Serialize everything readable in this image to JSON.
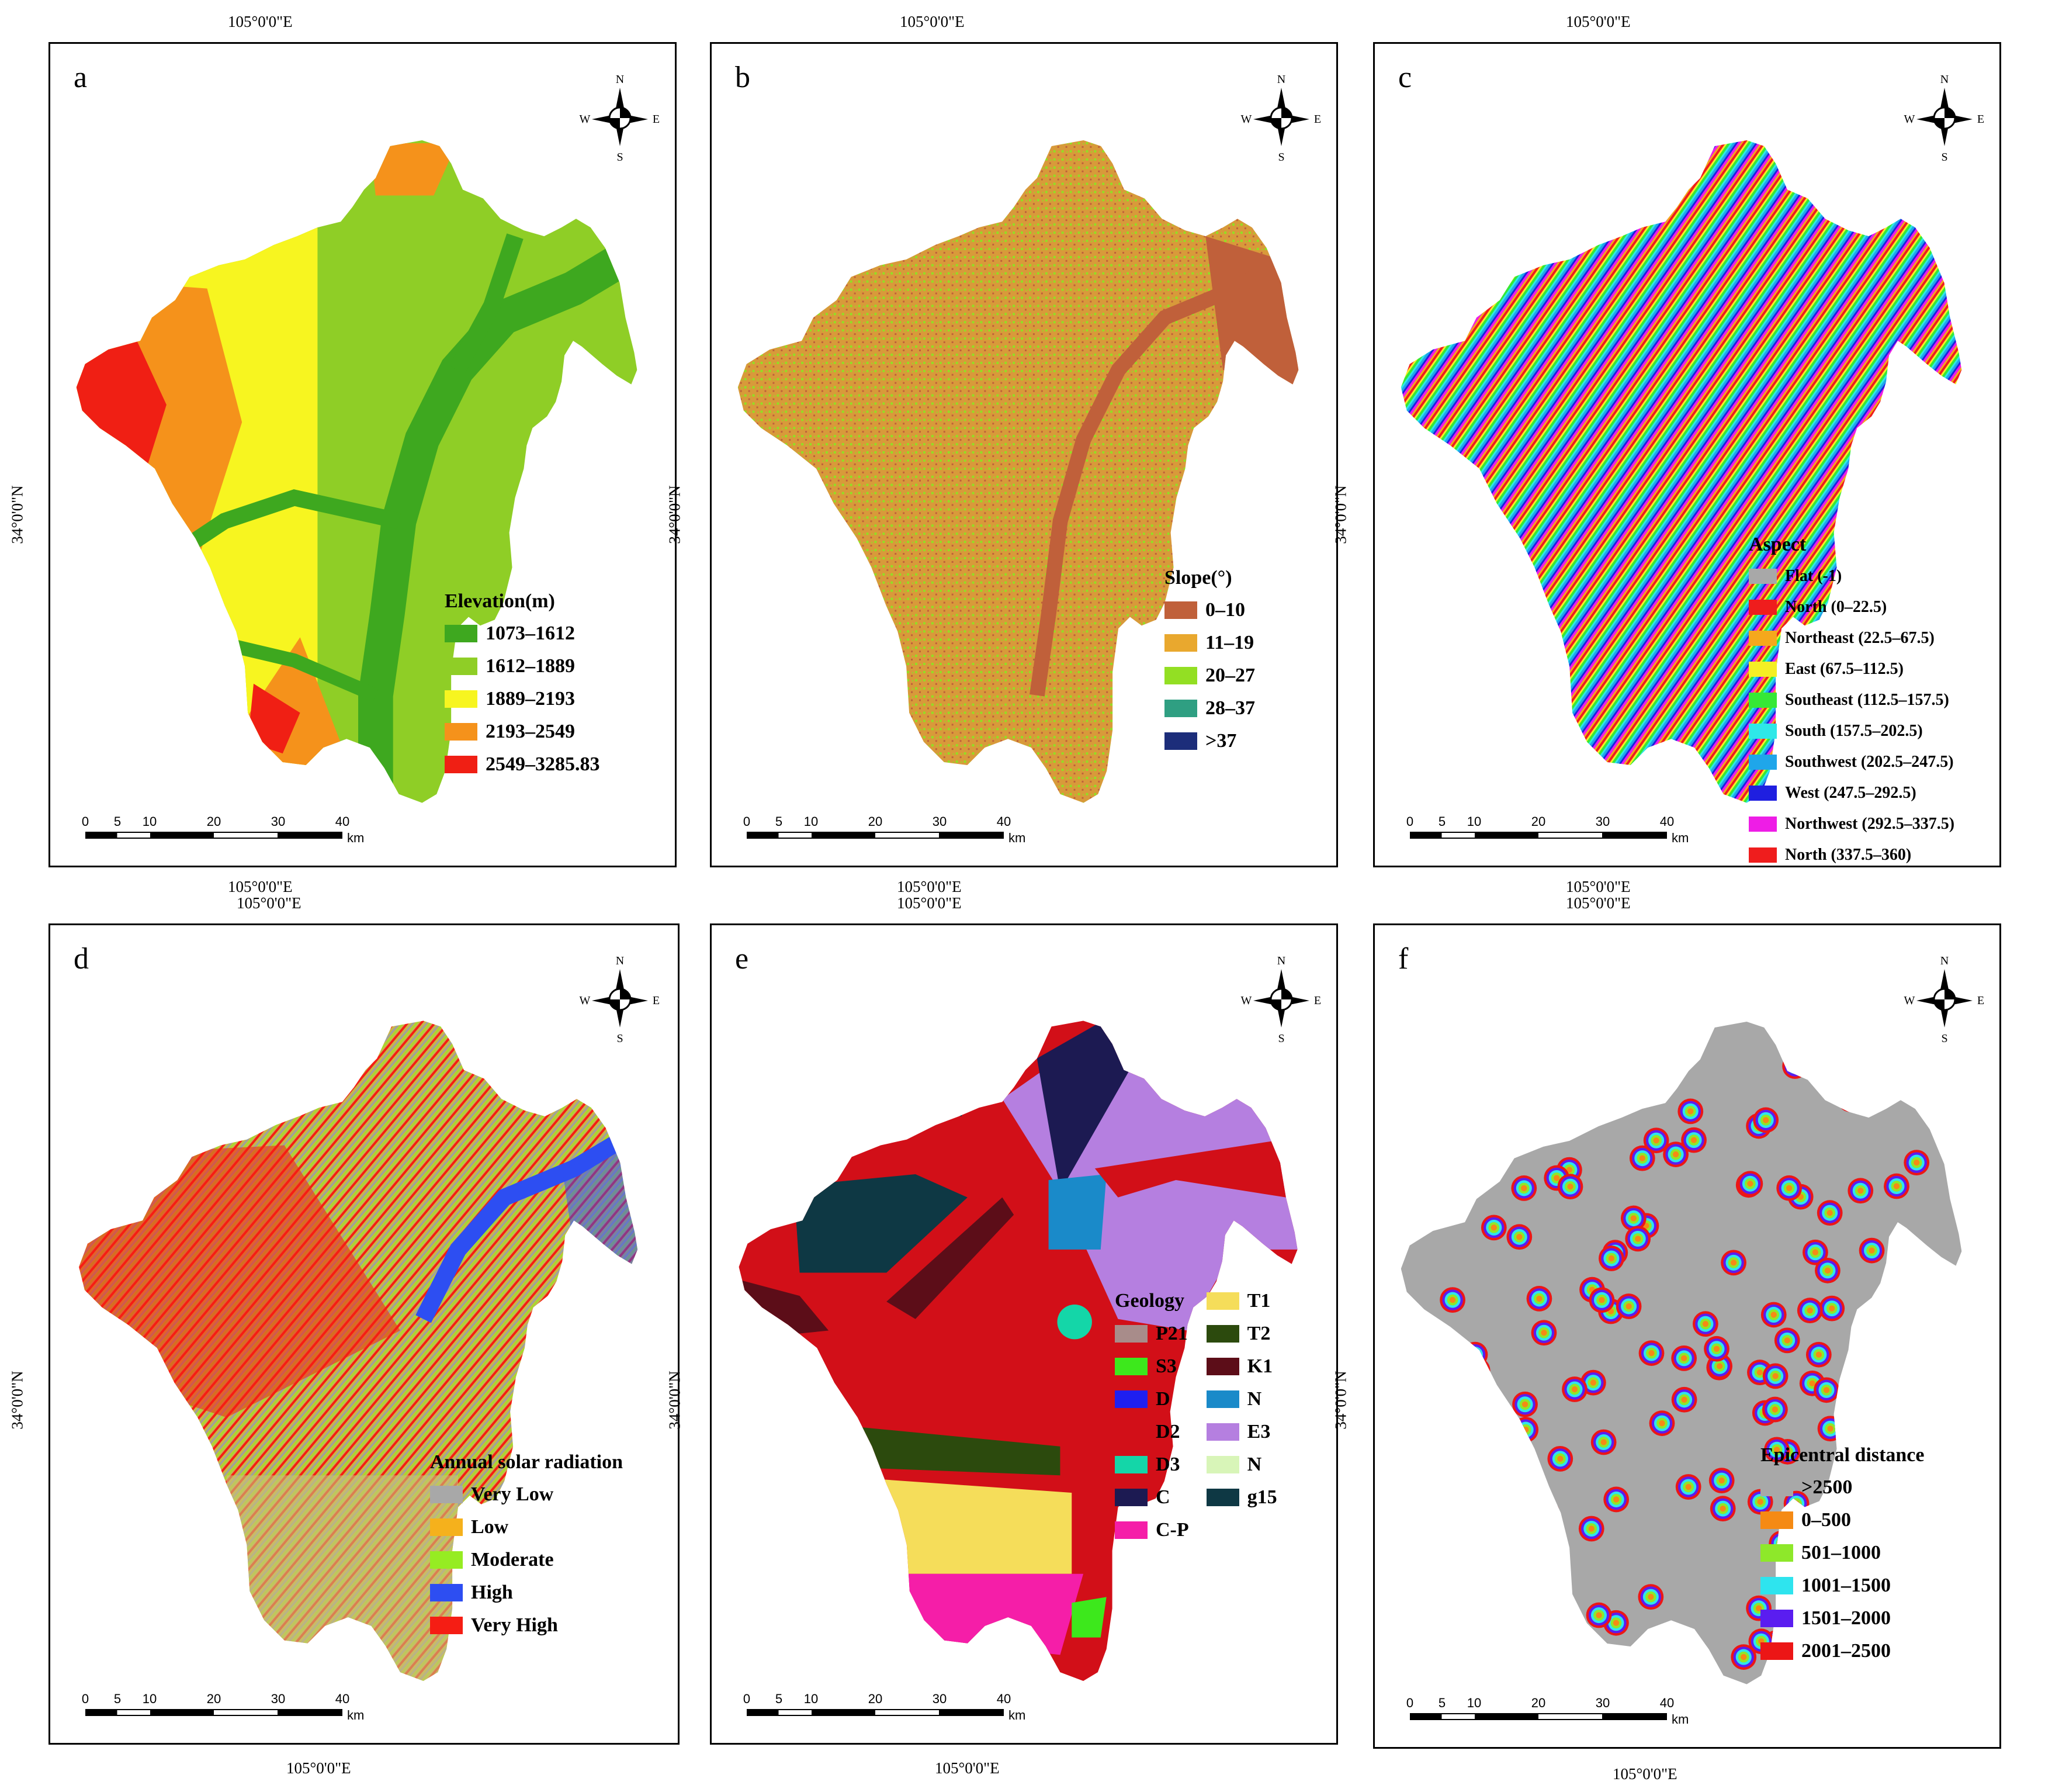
{
  "coords": {
    "lon": "105°0'0\"E",
    "lat": "34°0'0\"N"
  },
  "compass": {
    "n": "N",
    "s": "S",
    "e": "E",
    "w": "W"
  },
  "scalebar": {
    "ticks": [
      "0",
      "5",
      "10",
      "20",
      "30",
      "40"
    ],
    "unit": "km"
  },
  "panels": [
    {
      "id": "a",
      "legend_title": "Elevation(m)",
      "classes": [
        {
          "label": "1073–1612",
          "color": "#3ea81f"
        },
        {
          "label": "1612–1889",
          "color": "#8fce26"
        },
        {
          "label": "1889–2193",
          "color": "#f7f520"
        },
        {
          "label": "2193–2549",
          "color": "#f5921b"
        },
        {
          "label": "2549–3285.83",
          "color": "#f01f14"
        }
      ]
    },
    {
      "id": "b",
      "legend_title": "Slope(°)",
      "classes": [
        {
          "label": "0–10",
          "color": "#c0603a"
        },
        {
          "label": "11–19",
          "color": "#e9a82e"
        },
        {
          "label": "20–27",
          "color": "#93df23"
        },
        {
          "label": "28–37",
          "color": "#2f9f82"
        },
        {
          "label": ">37",
          "color": "#1c2d7a"
        }
      ]
    },
    {
      "id": "c",
      "legend_title": "Aspect",
      "classes": [
        {
          "label": "Flat (-1)",
          "color": "#a8a8a8"
        },
        {
          "label": "North (0–22.5)",
          "color": "#ef1d1d"
        },
        {
          "label": "Northeast (22.5–67.5)",
          "color": "#f5a81c"
        },
        {
          "label": "East (67.5–112.5)",
          "color": "#f5ef24"
        },
        {
          "label": "Southeast (112.5–157.5)",
          "color": "#36e836"
        },
        {
          "label": "South (157.5–202.5)",
          "color": "#2ee8e8"
        },
        {
          "label": "Southwest (202.5–247.5)",
          "color": "#1fa6ea"
        },
        {
          "label": "West (247.5–292.5)",
          "color": "#1f1fe0"
        },
        {
          "label": "Northwest (292.5–337.5)",
          "color": "#ee1de6"
        },
        {
          "label": "North (337.5–360)",
          "color": "#ef1d1d"
        }
      ]
    },
    {
      "id": "d",
      "legend_title": "Annual solar radiation",
      "classes": [
        {
          "label": "Very Low",
          "color": "#a8a8a8"
        },
        {
          "label": "Low",
          "color": "#f5b11c"
        },
        {
          "label": "Moderate",
          "color": "#96ec22"
        },
        {
          "label": "High",
          "color": "#2d4ef2"
        },
        {
          "label": "Very High",
          "color": "#f51d14"
        }
      ]
    },
    {
      "id": "e",
      "legend_title": "Geology",
      "classes_col1": [
        {
          "label": "P21",
          "color": "#a88c8a"
        },
        {
          "label": "S3",
          "color": "#3de81c"
        },
        {
          "label": "D",
          "color": "#1f1ff0"
        },
        {
          "label": "D2",
          "color": "#d20f18"
        },
        {
          "label": "D3",
          "color": "#14d6a8"
        },
        {
          "label": "C",
          "color": "#1c1a52"
        },
        {
          "label": "C-P",
          "color": "#f51ea8"
        }
      ],
      "classes_col2": [
        {
          "label": "T1",
          "color": "#f5dd5a"
        },
        {
          "label": "T2",
          "color": "#2c4a0d"
        },
        {
          "label": "K1",
          "color": "#5c0d18"
        },
        {
          "label": "N",
          "color": "#1a8ac9"
        },
        {
          "label": "E3",
          "color": "#b57fe0"
        },
        {
          "label": "N",
          "color": "#d8f5b8"
        },
        {
          "label": "g15",
          "color": "#0e3844"
        }
      ]
    },
    {
      "id": "f",
      "legend_title": "Epicentral distance",
      "classes": [
        {
          "label": ">2500",
          "color": "#a8a8a8"
        },
        {
          "label": "0–500",
          "color": "#f58a14"
        },
        {
          "label": "501–1000",
          "color": "#8ee82a"
        },
        {
          "label": "1001–1500",
          "color": "#2ee4ee"
        },
        {
          "label": "1501–2000",
          "color": "#5a1df0"
        },
        {
          "label": "2001–2500",
          "color": "#ec1616"
        }
      ]
    }
  ]
}
